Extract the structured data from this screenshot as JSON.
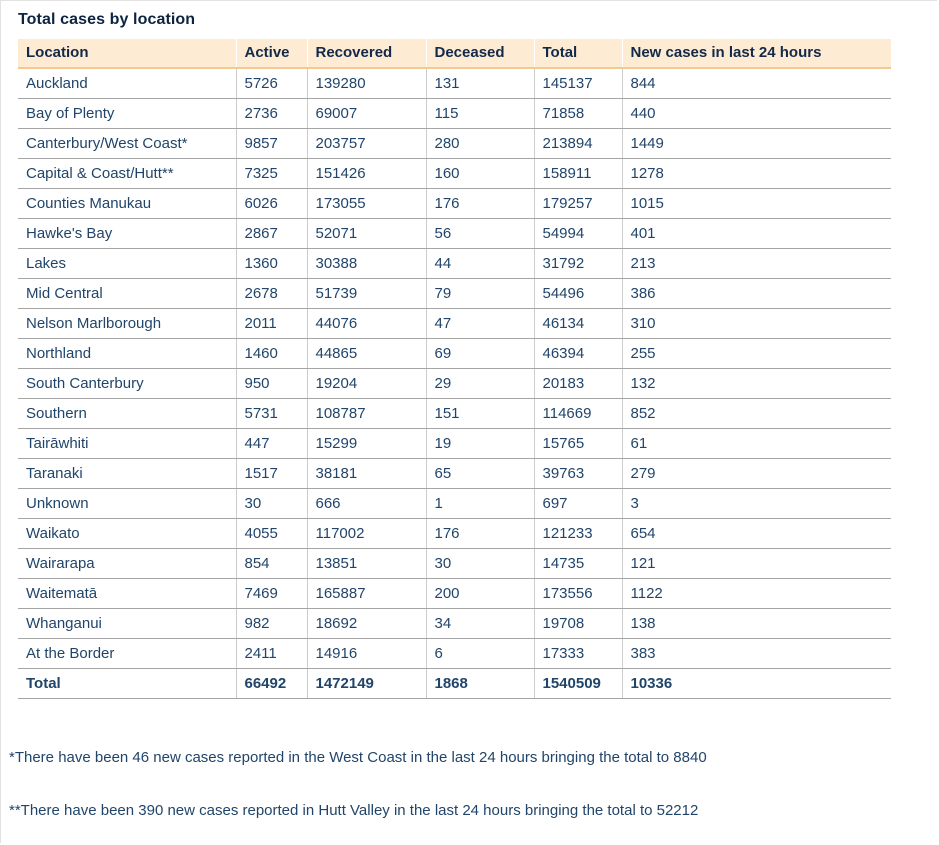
{
  "page": {
    "title": "Total cases by location"
  },
  "table": {
    "columns": [
      "Location",
      "Active",
      "Recovered",
      "Deceased",
      "Total",
      "New cases in last 24 hours"
    ],
    "rows": [
      [
        "Auckland",
        "5726",
        "139280",
        "131",
        "145137",
        "844"
      ],
      [
        "Bay of Plenty",
        "2736",
        "69007",
        "115",
        "71858",
        "440"
      ],
      [
        "Canterbury/West Coast*",
        "9857",
        "203757",
        "280",
        "213894",
        "1449"
      ],
      [
        "Capital & Coast/Hutt**",
        "7325",
        "151426",
        "160",
        "158911",
        "1278"
      ],
      [
        "Counties Manukau",
        "6026",
        "173055",
        "176",
        "179257",
        "1015"
      ],
      [
        "Hawke's Bay",
        "2867",
        "52071",
        "56",
        "54994",
        "401"
      ],
      [
        "Lakes",
        "1360",
        "30388",
        "44",
        "31792",
        "213"
      ],
      [
        "Mid Central",
        "2678",
        "51739",
        "79",
        "54496",
        "386"
      ],
      [
        "Nelson Marlborough",
        "2011",
        "44076",
        "47",
        "46134",
        "310"
      ],
      [
        "Northland",
        "1460",
        "44865",
        "69",
        "46394",
        "255"
      ],
      [
        "South Canterbury",
        "950",
        "19204",
        "29",
        "20183",
        "132"
      ],
      [
        "Southern",
        "5731",
        "108787",
        "151",
        "114669",
        "852"
      ],
      [
        "Tairāwhiti",
        "447",
        "15299",
        "19",
        "15765",
        "61"
      ],
      [
        "Taranaki",
        "1517",
        "38181",
        "65",
        "39763",
        "279"
      ],
      [
        "Unknown",
        "30",
        "666",
        "1",
        "697",
        "3"
      ],
      [
        "Waikato",
        "4055",
        "117002",
        "176",
        "121233",
        "654"
      ],
      [
        "Wairarapa",
        "854",
        "13851",
        "30",
        "14735",
        "121"
      ],
      [
        "Waitematā",
        "7469",
        "165887",
        "200",
        "173556",
        "1122"
      ],
      [
        "Whanganui",
        "982",
        "18692",
        "34",
        "19708",
        "138"
      ],
      [
        "At the Border",
        "2411",
        "14916",
        "6",
        "17333",
        "383"
      ]
    ],
    "total_row": [
      "Total",
      "66492",
      "1472149",
      "1868",
      "1540509",
      "10336"
    ]
  },
  "footnotes": [
    "*There have been 46 new cases reported in the West Coast in the last 24 hours bringing the total to 8840",
    "**There have been 390 new cases reported in Hutt Valley in the last 24 hours bringing the total to 52212"
  ],
  "colors": {
    "header_bg": "#fdebd3",
    "header_border": "#f3c893",
    "header_text": "#13294a",
    "body_text": "#21456a",
    "row_border": "#a5a5a5",
    "cell_divider": "#cccccc",
    "title_text": "#0c2440"
  }
}
